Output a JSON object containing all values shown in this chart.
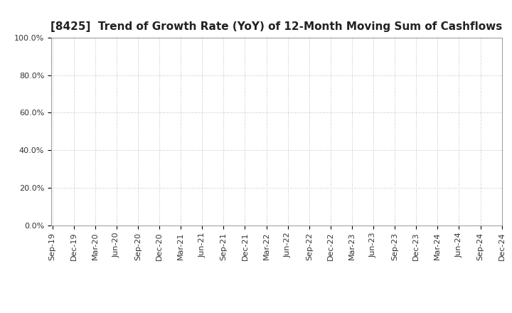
{
  "title": "[8425]  Trend of Growth Rate (YoY) of 12-Month Moving Sum of Cashflows",
  "xlabel": "",
  "ylabel": "",
  "ylim": [
    0.0,
    1.0
  ],
  "yticks": [
    0.0,
    0.2,
    0.4,
    0.6,
    0.8,
    1.0
  ],
  "ytick_labels": [
    "0.0%",
    "20.0%",
    "40.0%",
    "60.0%",
    "80.0%",
    "100.0%"
  ],
  "x_labels": [
    "Sep-19",
    "Dec-19",
    "Mar-20",
    "Jun-20",
    "Sep-20",
    "Dec-20",
    "Mar-21",
    "Jun-21",
    "Sep-21",
    "Dec-21",
    "Mar-22",
    "Jun-22",
    "Sep-22",
    "Dec-22",
    "Mar-23",
    "Jun-23",
    "Sep-23",
    "Dec-23",
    "Mar-24",
    "Jun-24",
    "Sep-24",
    "Dec-24"
  ],
  "operating_cashflow_color": "#FF0000",
  "free_cashflow_color": "#0000FF",
  "background_color": "#FFFFFF",
  "grid_color": "#AAAAAA",
  "title_fontsize": 11,
  "legend_fontsize": 9,
  "tick_fontsize": 8,
  "line_width": 1.5,
  "legend_text_color": "#555555"
}
